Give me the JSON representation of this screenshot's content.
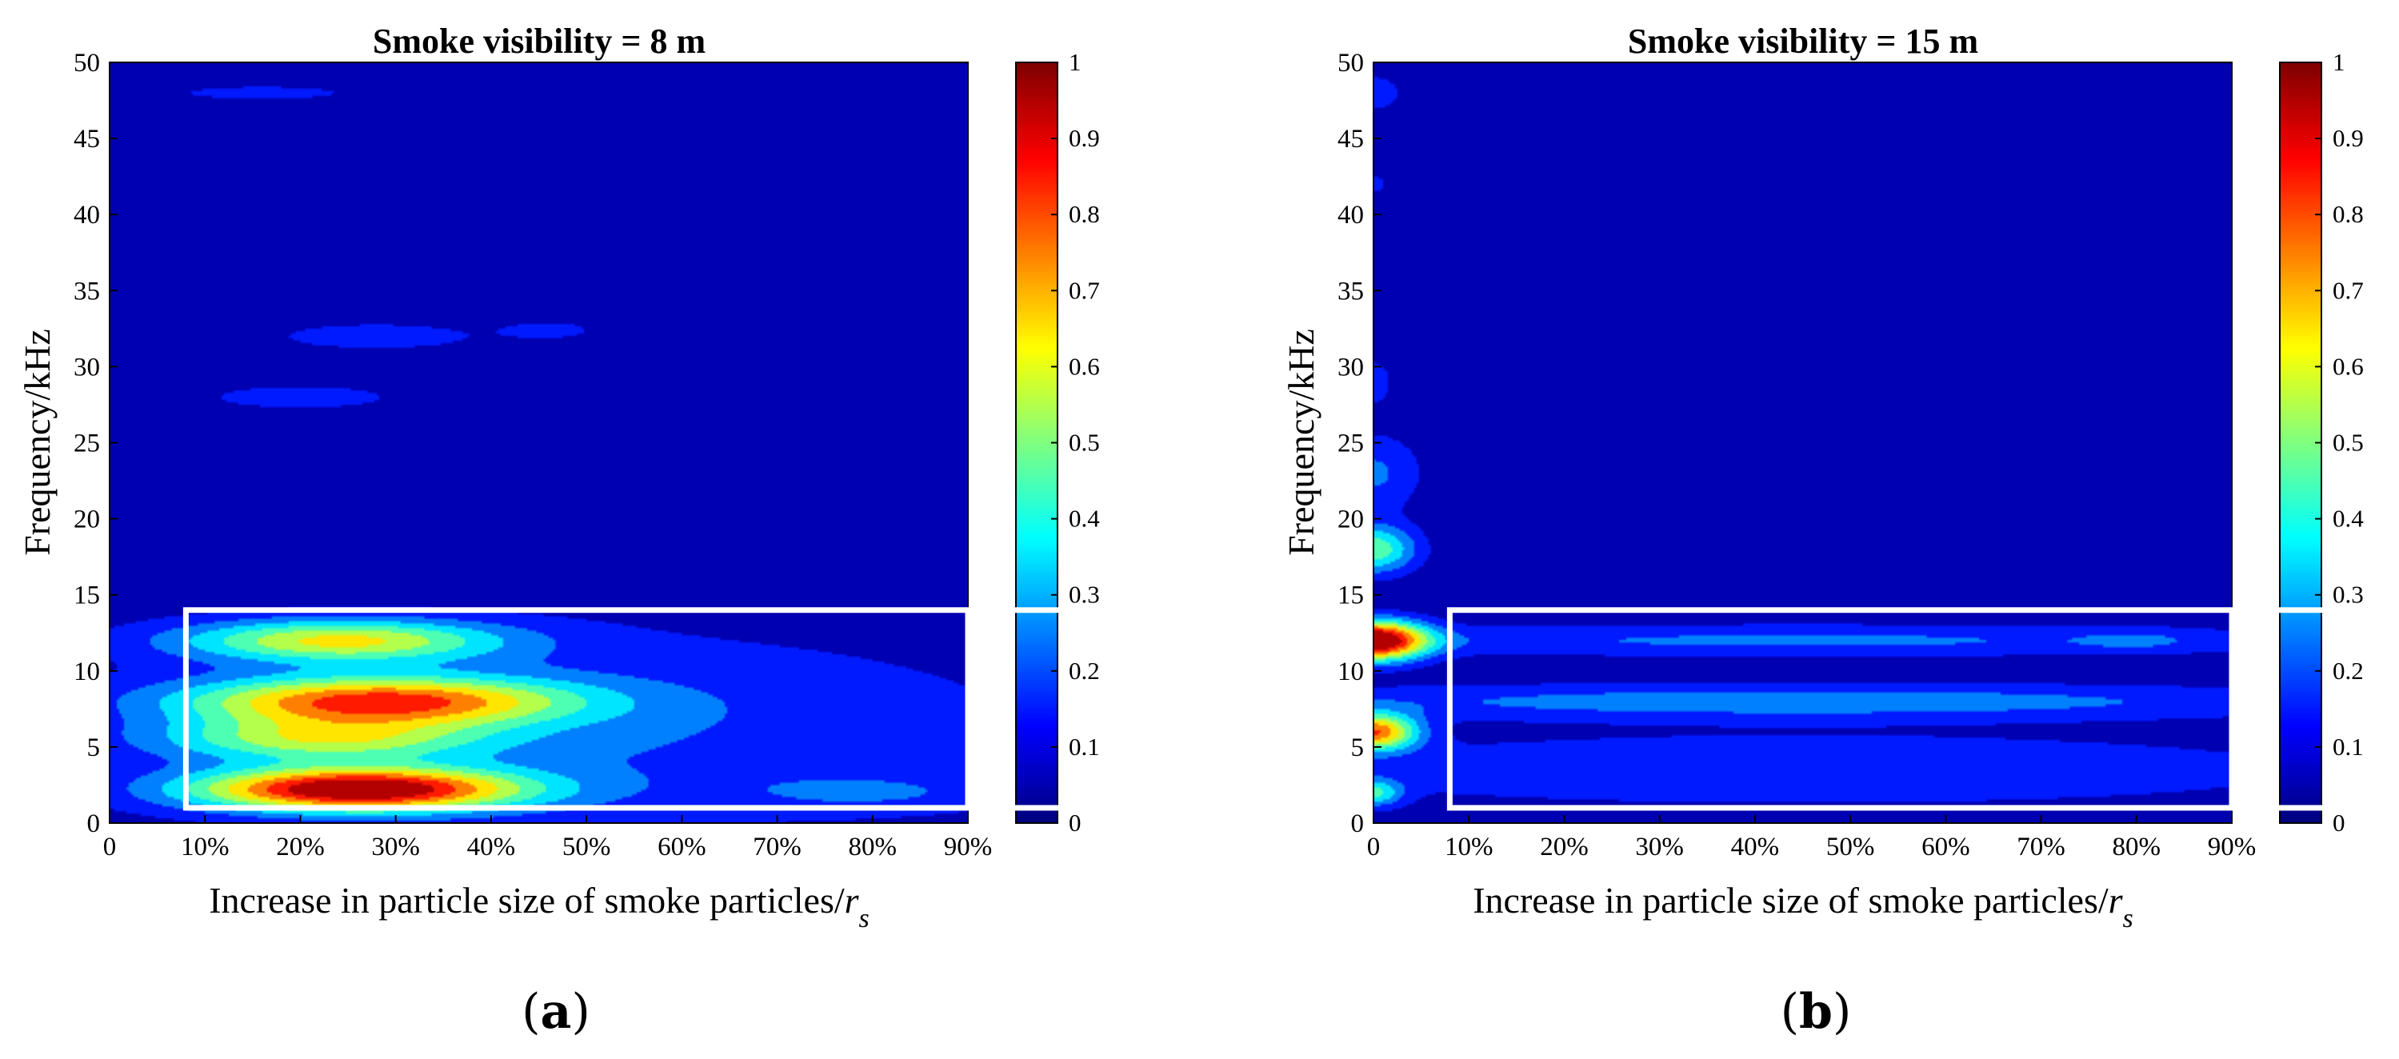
{
  "chart_data": [
    {
      "type": "heatmap",
      "subtype": "filled-contour",
      "panel_label": "(a)",
      "panel_label_bold": "a",
      "title": "Smoke visibility = 8 m",
      "xlabel_main": "Increase in particle size of smoke particles/",
      "xlabel_var": "r",
      "xlabel_sub": "s",
      "ylabel": "Frequency/kHz",
      "x_ticks": [
        "0",
        "10%",
        "20%",
        "30%",
        "40%",
        "50%",
        "60%",
        "70%",
        "80%",
        "90%"
      ],
      "y_ticks": [
        "0",
        "5",
        "10",
        "15",
        "20",
        "25",
        "30",
        "35",
        "40",
        "45",
        "50"
      ],
      "xlim": [
        0,
        90
      ],
      "ylim": [
        0,
        50
      ],
      "colorbar": {
        "min": 0,
        "max": 1,
        "ticks": [
          "0",
          "0.1",
          "0.2",
          "0.3",
          "0.4",
          "0.5",
          "0.6",
          "0.7",
          "0.8",
          "0.9",
          "1"
        ],
        "colormap": "jet"
      },
      "highlight_box": {
        "x": [
          8,
          90
        ],
        "y": [
          1,
          14
        ],
        "color": "#ffffff"
      },
      "regions": [
        {
          "name": "blob-48k",
          "x": 16,
          "y": 48,
          "sx": 9,
          "sy": 0.45,
          "amp": 0.16
        },
        {
          "name": "blob-32k",
          "x": 28,
          "y": 32,
          "sx": 11,
          "sy": 0.9,
          "amp": 0.16
        },
        {
          "name": "blob-32k-right",
          "x": 46,
          "y": 32.4,
          "sx": 5,
          "sy": 0.6,
          "amp": 0.14
        },
        {
          "name": "blob-28k",
          "x": 20,
          "y": 28,
          "sx": 10,
          "sy": 0.8,
          "amp": 0.16
        },
        {
          "name": "band-12k",
          "x": 24,
          "y": 12,
          "sx": 17,
          "sy": 1.4,
          "amp": 0.55
        },
        {
          "name": "band-8k",
          "x": 28,
          "y": 8,
          "sx": 20,
          "sy": 1.6,
          "amp": 0.72
        },
        {
          "name": "band-5k",
          "x": 22,
          "y": 5.5,
          "sx": 17,
          "sy": 1.4,
          "amp": 0.42
        },
        {
          "name": "band-2k",
          "x": 26,
          "y": 2.2,
          "sx": 17,
          "sy": 1.4,
          "amp": 0.95
        },
        {
          "name": "base-low",
          "x": 50,
          "y": 6,
          "sx": 50,
          "sy": 7,
          "amp": 0.18
        },
        {
          "name": "tail-2k",
          "x": 80,
          "y": 2,
          "sx": 14,
          "sy": 1.2,
          "amp": 0.12
        }
      ]
    },
    {
      "type": "heatmap",
      "subtype": "filled-contour",
      "panel_label": "(b)",
      "panel_label_bold": "b",
      "title": "Smoke visibility = 15 m",
      "xlabel_main": "Increase in particle size of smoke particles/",
      "xlabel_var": "r",
      "xlabel_sub": "s",
      "ylabel": "Frequency/kHz",
      "x_ticks": [
        "0",
        "10%",
        "20%",
        "30%",
        "40%",
        "50%",
        "60%",
        "70%",
        "80%",
        "90%"
      ],
      "y_ticks": [
        "0",
        "5",
        "10",
        "15",
        "20",
        "25",
        "30",
        "35",
        "40",
        "45",
        "50"
      ],
      "xlim": [
        0,
        90
      ],
      "ylim": [
        0,
        50
      ],
      "colorbar": {
        "min": 0,
        "max": 1,
        "ticks": [
          "0",
          "0.1",
          "0.2",
          "0.3",
          "0.4",
          "0.5",
          "0.6",
          "0.7",
          "0.8",
          "0.9",
          "1"
        ],
        "colormap": "jet"
      },
      "highlight_box": {
        "x": [
          8,
          90
        ],
        "y": [
          1,
          14
        ],
        "color": "#ffffff"
      },
      "regions": [
        {
          "name": "edge-48k",
          "x": 0,
          "y": 48,
          "sx": 3,
          "sy": 1.2,
          "amp": 0.16
        },
        {
          "name": "edge-42k",
          "x": 0,
          "y": 42,
          "sx": 1.5,
          "sy": 0.6,
          "amp": 0.14
        },
        {
          "name": "edge-30k",
          "x": 0,
          "y": 29,
          "sx": 2,
          "sy": 1.6,
          "amp": 0.15
        },
        {
          "name": "edge-24k",
          "x": 0,
          "y": 23,
          "sx": 5,
          "sy": 2.6,
          "amp": 0.2
        },
        {
          "name": "edge-18k",
          "x": 0,
          "y": 18,
          "sx": 4.5,
          "sy": 1.6,
          "amp": 0.45
        },
        {
          "name": "edge-12k",
          "x": 0,
          "y": 12,
          "sx": 5.5,
          "sy": 1.3,
          "amp": 1.0
        },
        {
          "name": "edge-6k",
          "x": 0,
          "y": 6,
          "sx": 4.5,
          "sy": 1.2,
          "amp": 0.75
        },
        {
          "name": "edge-2k",
          "x": 0,
          "y": 2,
          "sx": 3,
          "sy": 0.9,
          "amp": 0.35
        },
        {
          "name": "band-12k",
          "x": 45,
          "y": 12,
          "sx": 60,
          "sy": 1.1,
          "amp": 0.2
        },
        {
          "name": "band-12k-r",
          "x": 80,
          "y": 12,
          "sx": 6,
          "sy": 0.7,
          "amp": 0.08
        },
        {
          "name": "band-8k",
          "x": 45,
          "y": 8,
          "sx": 60,
          "sy": 1.2,
          "amp": 0.24
        },
        {
          "name": "band-4k",
          "x": 45,
          "y": 3.5,
          "sx": 60,
          "sy": 2.5,
          "amp": 0.17
        }
      ]
    }
  ]
}
